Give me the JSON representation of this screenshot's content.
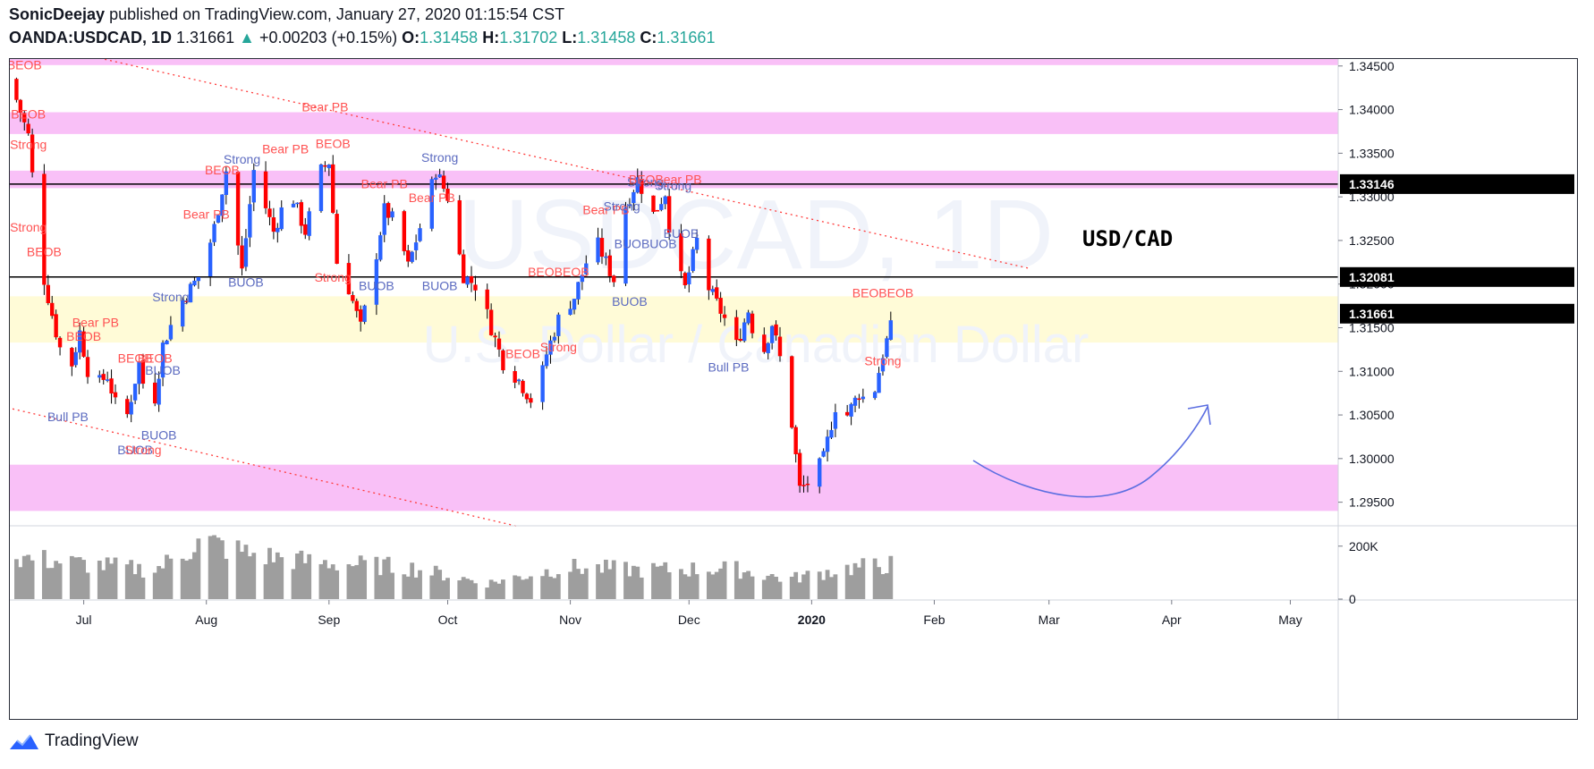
{
  "header": {
    "author": "SonicDeejay",
    "published": " published on TradingView.com, January 27, 2020 01:15:54 CST",
    "symbol": "OANDA:USDCAD, 1D",
    "last": "1.31661",
    "arrow": "▲",
    "change": "+0.00203 (+0.15%)",
    "o_label": "O:",
    "o_val": "1.31458",
    "h_label": "H:",
    "h_val": "1.31702",
    "l_label": "L:",
    "l_val": "1.31458",
    "c_label": "C:",
    "c_val": "1.31661"
  },
  "watermark": {
    "line1": "USDCAD, 1D",
    "line2": "U.S. Dollar / Canadian Dollar"
  },
  "annotation_title": "USD/CAD",
  "price_axis": {
    "ticks": [
      "1.34500",
      "1.34000",
      "1.33500",
      "1.33000",
      "1.32500",
      "1.32000",
      "1.31500",
      "1.31000",
      "1.30500",
      "1.30000",
      "1.29500"
    ],
    "tick_values": [
      1.345,
      1.34,
      1.335,
      1.33,
      1.325,
      1.32,
      1.315,
      1.31,
      1.305,
      1.3,
      1.295
    ],
    "range": [
      1.2924,
      1.3459
    ],
    "markers": [
      {
        "label": "1.33146",
        "value": 1.33146
      },
      {
        "label": "1.32081",
        "value": 1.32081
      },
      {
        "label": "1.31661",
        "value": 1.31661
      }
    ]
  },
  "volume_axis": {
    "ticks": [
      "200K",
      "0"
    ],
    "tick_values": [
      200000,
      0
    ],
    "max": 260000
  },
  "time_axis": {
    "labels": [
      "Jul",
      "Aug",
      "Sep",
      "Oct",
      "Nov",
      "Dec",
      "2020",
      "Feb",
      "Mar",
      "Apr",
      "May"
    ],
    "day_index": [
      18,
      49,
      80,
      110,
      141,
      171,
      202,
      233,
      262,
      293,
      323
    ],
    "bold": [
      false,
      false,
      false,
      false,
      false,
      false,
      true,
      false,
      false,
      false,
      false
    ],
    "days_visible": [
      0,
      336
    ]
  },
  "zones": [
    {
      "color": "#f9c0f7",
      "from": 1.3451,
      "to": 1.3459
    },
    {
      "color": "#f9c0f7",
      "from": 1.3372,
      "to": 1.3397
    },
    {
      "color": "#f9c0f7",
      "from": 1.331,
      "to": 1.333
    },
    {
      "color": "#fffbd7",
      "from": 1.3133,
      "to": 1.3186
    },
    {
      "color": "#f9c0f7",
      "from": 1.294,
      "to": 1.2993
    }
  ],
  "hlines": [
    1.33146,
    1.32081
  ],
  "trendlines": [
    {
      "d1": 22,
      "p1": 1.3459,
      "d2": 257,
      "p2": 1.3218
    },
    {
      "d1": 0,
      "p1": 1.3057,
      "d2": 128,
      "p2": 1.2922
    }
  ],
  "chart_data": {
    "type": "candlestick",
    "title": "OANDA:USDCAD, 1D",
    "colors": {
      "up": "#2962ff",
      "down": "#ff0000",
      "volume": "#9e9e9e"
    },
    "anchors": [
      {
        "day": 0,
        "close": 1.3425
      },
      {
        "day": 4,
        "close": 1.337
      },
      {
        "day": 6,
        "close": 1.328
      },
      {
        "day": 8,
        "close": 1.3205
      },
      {
        "day": 11,
        "close": 1.3145
      },
      {
        "day": 14,
        "close": 1.309
      },
      {
        "day": 17,
        "close": 1.3145
      },
      {
        "day": 20,
        "close": 1.308
      },
      {
        "day": 24,
        "close": 1.3095
      },
      {
        "day": 28,
        "close": 1.303
      },
      {
        "day": 32,
        "close": 1.311
      },
      {
        "day": 35,
        "close": 1.304
      },
      {
        "day": 38,
        "close": 1.313
      },
      {
        "day": 42,
        "close": 1.3175
      },
      {
        "day": 45,
        "close": 1.3195
      },
      {
        "day": 48,
        "close": 1.3215
      },
      {
        "day": 51,
        "close": 1.3265
      },
      {
        "day": 54,
        "close": 1.333
      },
      {
        "day": 58,
        "close": 1.3215
      },
      {
        "day": 61,
        "close": 1.333
      },
      {
        "day": 66,
        "close": 1.326
      },
      {
        "day": 70,
        "close": 1.331
      },
      {
        "day": 74,
        "close": 1.326
      },
      {
        "day": 78,
        "close": 1.333
      },
      {
        "day": 80,
        "close": 1.334
      },
      {
        "day": 82,
        "close": 1.3225
      },
      {
        "day": 85,
        "close": 1.3195
      },
      {
        "day": 88,
        "close": 1.315
      },
      {
        "day": 91,
        "close": 1.321
      },
      {
        "day": 94,
        "close": 1.3285
      },
      {
        "day": 97,
        "close": 1.327
      },
      {
        "day": 100,
        "close": 1.322
      },
      {
        "day": 104,
        "close": 1.328
      },
      {
        "day": 107,
        "close": 1.333
      },
      {
        "day": 110,
        "close": 1.33
      },
      {
        "day": 114,
        "close": 1.321
      },
      {
        "day": 118,
        "close": 1.3195
      },
      {
        "day": 121,
        "close": 1.315
      },
      {
        "day": 124,
        "close": 1.311
      },
      {
        "day": 128,
        "close": 1.309
      },
      {
        "day": 132,
        "close": 1.306
      },
      {
        "day": 135,
        "close": 1.312
      },
      {
        "day": 138,
        "close": 1.316
      },
      {
        "day": 142,
        "close": 1.3185
      },
      {
        "day": 145,
        "close": 1.3225
      },
      {
        "day": 148,
        "close": 1.3245
      },
      {
        "day": 152,
        "close": 1.3205
      },
      {
        "day": 155,
        "close": 1.329
      },
      {
        "day": 158,
        "close": 1.332
      },
      {
        "day": 162,
        "close": 1.328
      },
      {
        "day": 165,
        "close": 1.3305
      },
      {
        "day": 167,
        "close": 1.323
      },
      {
        "day": 170,
        "close": 1.3195
      },
      {
        "day": 173,
        "close": 1.325
      },
      {
        "day": 176,
        "close": 1.3195
      },
      {
        "day": 180,
        "close": 1.316
      },
      {
        "day": 183,
        "close": 1.313
      },
      {
        "day": 186,
        "close": 1.317
      },
      {
        "day": 189,
        "close": 1.311
      },
      {
        "day": 192,
        "close": 1.3155
      },
      {
        "day": 195,
        "close": 1.3095
      },
      {
        "day": 197,
        "close": 1.304
      },
      {
        "day": 199,
        "close": 1.2965
      },
      {
        "day": 202,
        "close": 1.2975
      },
      {
        "day": 205,
        "close": 1.3
      },
      {
        "day": 208,
        "close": 1.306
      },
      {
        "day": 211,
        "close": 1.305
      },
      {
        "day": 214,
        "close": 1.3075
      },
      {
        "day": 217,
        "close": 1.306
      },
      {
        "day": 220,
        "close": 1.312
      },
      {
        "day": 222,
        "close": 1.315
      },
      {
        "day": 224,
        "close": 1.3166
      }
    ],
    "volume_anchors": [
      {
        "day": 0,
        "v": 160000
      },
      {
        "day": 20,
        "v": 130000
      },
      {
        "day": 36,
        "v": 110000
      },
      {
        "day": 48,
        "v": 220000
      },
      {
        "day": 60,
        "v": 170000
      },
      {
        "day": 76,
        "v": 140000
      },
      {
        "day": 100,
        "v": 120000
      },
      {
        "day": 120,
        "v": 60000
      },
      {
        "day": 140,
        "v": 120000
      },
      {
        "day": 160,
        "v": 110000
      },
      {
        "day": 182,
        "v": 115000
      },
      {
        "day": 196,
        "v": 75000
      },
      {
        "day": 210,
        "v": 115000
      },
      {
        "day": 222,
        "v": 130000
      },
      {
        "day": 224,
        "v": 15000
      }
    ],
    "signals": [
      {
        "text": "BEOB",
        "day": 3,
        "price": 1.3446,
        "color": "#ff5252"
      },
      {
        "text": "BEOB",
        "day": 4,
        "price": 1.339,
        "color": "#ff5252"
      },
      {
        "text": "Strong",
        "day": 4,
        "price": 1.3355,
        "color": "#ff5252"
      },
      {
        "text": "Strong",
        "day": 4,
        "price": 1.326,
        "color": "#ff5252"
      },
      {
        "text": "BEOB",
        "day": 8,
        "price": 1.3232,
        "color": "#ff5252"
      },
      {
        "text": "Bear PB",
        "day": 21,
        "price": 1.3151,
        "color": "#ff5252"
      },
      {
        "text": "BEOB",
        "day": 18,
        "price": 1.3135,
        "color": "#ff5252"
      },
      {
        "text": "Bull PB",
        "day": 14,
        "price": 1.3043,
        "color": "#5c6bc0"
      },
      {
        "text": "BEOB",
        "day": 31,
        "price": 1.311,
        "color": "#ff5252"
      },
      {
        "text": "BEOB",
        "day": 36,
        "price": 1.311,
        "color": "#ff5252"
      },
      {
        "text": "BUOB",
        "day": 38,
        "price": 1.3096,
        "color": "#5c6bc0"
      },
      {
        "text": "BUOB",
        "day": 37,
        "price": 1.3022,
        "color": "#5c6bc0"
      },
      {
        "text": "BUOB",
        "day": 31,
        "price": 1.3005,
        "color": "#5c6bc0"
      },
      {
        "text": "Strong",
        "day": 33,
        "price": 1.3005,
        "color": "#ff5252"
      },
      {
        "text": "Strong",
        "day": 40,
        "price": 1.318,
        "color": "#5c6bc0"
      },
      {
        "text": "Bear PB",
        "day": 49,
        "price": 1.3275,
        "color": "#ff5252"
      },
      {
        "text": "BEOB",
        "day": 53,
        "price": 1.3326,
        "color": "#ff5252"
      },
      {
        "text": "Strong",
        "day": 58,
        "price": 1.3338,
        "color": "#5c6bc0"
      },
      {
        "text": "Bear PB",
        "day": 69,
        "price": 1.335,
        "color": "#ff5252"
      },
      {
        "text": "BUOB",
        "day": 59,
        "price": 1.3197,
        "color": "#5c6bc0"
      },
      {
        "text": "Bear PB",
        "day": 79,
        "price": 1.3398,
        "color": "#ff5252"
      },
      {
        "text": "BEOB",
        "day": 81,
        "price": 1.3356,
        "color": "#ff5252"
      },
      {
        "text": "Strong",
        "day": 81,
        "price": 1.3203,
        "color": "#ff5252"
      },
      {
        "text": "BUOB",
        "day": 92,
        "price": 1.3193,
        "color": "#5c6bc0"
      },
      {
        "text": "Bear PB",
        "day": 94,
        "price": 1.331,
        "color": "#ff5252"
      },
      {
        "text": "Bear PB",
        "day": 106,
        "price": 1.3294,
        "color": "#ff5252"
      },
      {
        "text": "Strong",
        "day": 108,
        "price": 1.334,
        "color": "#5c6bc0"
      },
      {
        "text": "BUOB",
        "day": 108,
        "price": 1.3193,
        "color": "#5c6bc0"
      },
      {
        "text": "BEOB",
        "day": 129,
        "price": 1.3115,
        "color": "#ff5252"
      },
      {
        "text": "Strong",
        "day": 138,
        "price": 1.3123,
        "color": "#ff5252"
      },
      {
        "text": "BEOBEOB",
        "day": 138,
        "price": 1.3209,
        "color": "#ff5252"
      },
      {
        "text": "Bear PB",
        "day": 150,
        "price": 1.328,
        "color": "#ff5252"
      },
      {
        "text": "Strong",
        "day": 154,
        "price": 1.3284,
        "color": "#5c6bc0"
      },
      {
        "text": "BUOB",
        "day": 156,
        "price": 1.3175,
        "color": "#5c6bc0"
      },
      {
        "text": "BUOBUOB",
        "day": 160,
        "price": 1.3241,
        "color": "#5c6bc0"
      },
      {
        "text": "Strong",
        "day": 160,
        "price": 1.3312,
        "color": "#5c6bc0"
      },
      {
        "text": "BEOBear PB",
        "day": 165,
        "price": 1.3315,
        "color": "#ff5252"
      },
      {
        "text": "Strong",
        "day": 167,
        "price": 1.3308,
        "color": "#5c6bc0"
      },
      {
        "text": "BUOB",
        "day": 169,
        "price": 1.3253,
        "color": "#5c6bc0"
      },
      {
        "text": "Bull PB",
        "day": 181,
        "price": 1.31,
        "color": "#5c6bc0"
      },
      {
        "text": "BEOBEOB",
        "day": 220,
        "price": 1.3185,
        "color": "#ff5252"
      },
      {
        "text": "Strong",
        "day": 220,
        "price": 1.3107,
        "color": "#ff5252"
      }
    ]
  }
}
